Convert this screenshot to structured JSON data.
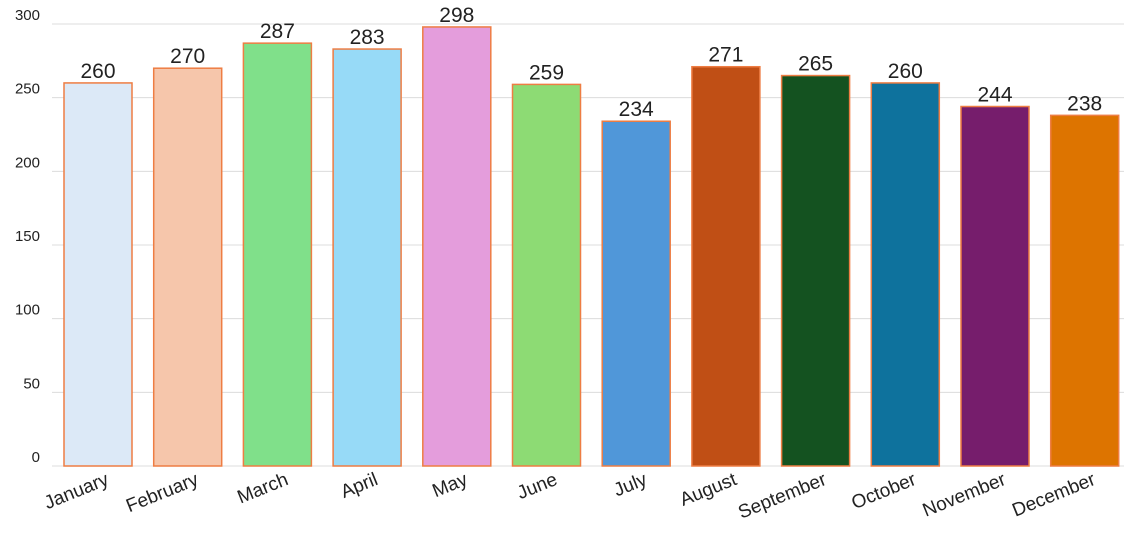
{
  "chart_data": {
    "type": "bar",
    "categories": [
      "January",
      "February",
      "March",
      "April",
      "May",
      "June",
      "July",
      "August",
      "September",
      "October",
      "November",
      "December"
    ],
    "values": [
      260,
      270,
      287,
      283,
      298,
      259,
      234,
      271,
      265,
      260,
      244,
      238
    ],
    "colors": [
      "#dce9f7",
      "#f6c6ab",
      "#80e08a",
      "#97daf7",
      "#e49ddc",
      "#8ddb74",
      "#5097d9",
      "#c04f15",
      "#145220",
      "#0e729d",
      "#761d6c",
      "#dd7400"
    ],
    "edgecolor": "#ee7d43",
    "ylim": [
      0,
      300
    ],
    "yticks": [
      0,
      50,
      100,
      150,
      200,
      250,
      300
    ],
    "grid": true
  }
}
